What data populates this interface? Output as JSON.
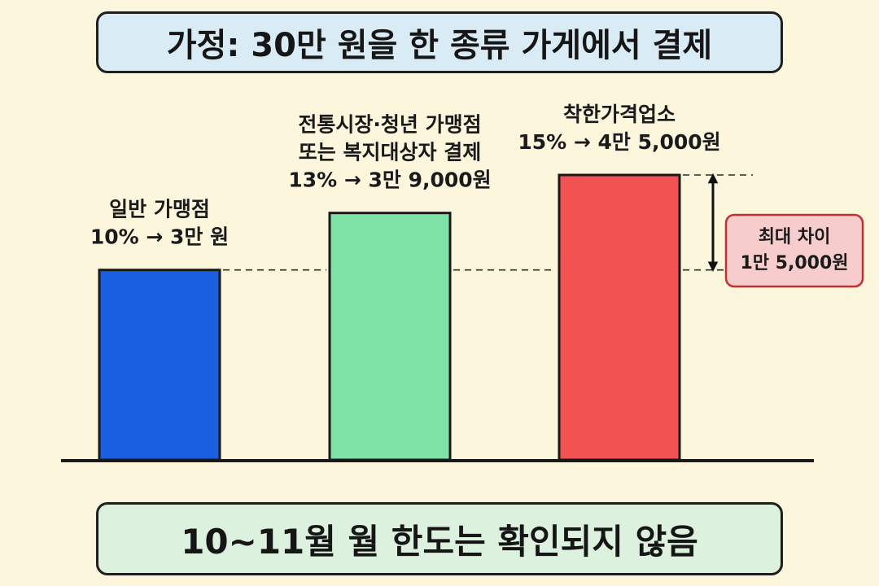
{
  "title": "가정: 30만 원을 한 종류 가게에서 결제",
  "footer": "10~11월 월 한도는 확인되지 않음",
  "chart_data": {
    "type": "bar",
    "categories": [
      "일반 가맹점",
      "전통시장·청년 가맹점 또는 복지대상자 결제",
      "착한가격업소"
    ],
    "series": [
      {
        "values": [
          30000,
          39000,
          45000
        ],
        "colors": [
          "#1a5fe0",
          "#7fe3a8",
          "#f25252"
        ]
      }
    ],
    "rates": [
      "10%",
      "13%",
      "15%"
    ],
    "amount_labels": [
      "3만 원",
      "3만 9,000원",
      "4만 5,000원"
    ],
    "label_lines": [
      [
        "일반 가맹점",
        "10% → 3만 원"
      ],
      [
        "전통시장·청년 가맹점",
        "또는 복지대상자 결제",
        "13% → 3만 9,000원"
      ],
      [
        "착한가격업소",
        "15% → 4만 5,000원"
      ]
    ],
    "difference": {
      "lines": [
        "최대 차이",
        "1만 5,000원"
      ],
      "value": 15000
    },
    "ylim": [
      0,
      45000
    ],
    "legend": "none",
    "grid": false
  }
}
